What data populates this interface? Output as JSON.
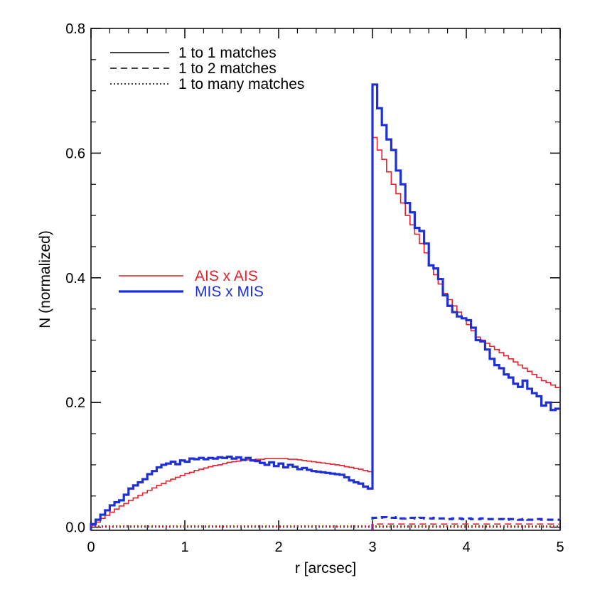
{
  "chart_data": {
    "type": "line",
    "title": "",
    "xlabel": "r [arcsec]",
    "ylabel": "N (normalized)",
    "xlim": [
      0,
      5
    ],
    "ylim": [
      -0.005,
      0.8
    ],
    "xticks": [
      0,
      1,
      2,
      3,
      4,
      5
    ],
    "xtick_labels": [
      "0",
      "1",
      "2",
      "3",
      "4",
      "5"
    ],
    "yticks": [
      0.0,
      0.2,
      0.4,
      0.6,
      0.8
    ],
    "ytick_labels": [
      "0.0",
      "0.2",
      "0.4",
      "0.6",
      "0.8"
    ],
    "step": true,
    "grid": false,
    "legend_linestyle": {
      "entries": [
        {
          "label": "1 to 1 matches",
          "dash": "solid"
        },
        {
          "label": "1 to 2 matches",
          "dash": "dashed"
        },
        {
          "label": "1 to many matches",
          "dash": "dotted"
        }
      ],
      "placement": "top-left"
    },
    "legend_series": {
      "entries": [
        {
          "label": "AIS x AIS",
          "color": "#e8202a",
          "width": "thin"
        },
        {
          "label": "MIS x MIS",
          "color": "#1e2fd6",
          "width": "thick"
        }
      ],
      "placement": "middle-left"
    },
    "series": [
      {
        "name": "AIS x AIS",
        "match": "1 to 1",
        "color": "#e8202a",
        "x": [
          0,
          0.05,
          0.1,
          0.15,
          0.2,
          0.25,
          0.3,
          0.35,
          0.4,
          0.45,
          0.5,
          0.55,
          0.6,
          0.65,
          0.7,
          0.75,
          0.8,
          0.85,
          0.9,
          0.95,
          1.0,
          1.05,
          1.1,
          1.15,
          1.2,
          1.25,
          1.3,
          1.35,
          1.4,
          1.45,
          1.5,
          1.55,
          1.6,
          1.65,
          1.7,
          1.75,
          1.8,
          1.85,
          1.9,
          1.95,
          2.0,
          2.05,
          2.1,
          2.15,
          2.2,
          2.25,
          2.3,
          2.35,
          2.4,
          2.45,
          2.5,
          2.55,
          2.6,
          2.65,
          2.7,
          2.75,
          2.8,
          2.85,
          2.9,
          2.95,
          3.0,
          3.05,
          3.1,
          3.15,
          3.2,
          3.25,
          3.3,
          3.35,
          3.4,
          3.45,
          3.5,
          3.55,
          3.6,
          3.65,
          3.7,
          3.75,
          3.8,
          3.85,
          3.9,
          3.95,
          4.0,
          4.05,
          4.1,
          4.15,
          4.2,
          4.25,
          4.3,
          4.35,
          4.4,
          4.45,
          4.5,
          4.55,
          4.6,
          4.65,
          4.7,
          4.75,
          4.8,
          4.85,
          4.9,
          4.95
        ],
        "y": [
          0.003,
          0.008,
          0.014,
          0.019,
          0.024,
          0.029,
          0.034,
          0.038,
          0.043,
          0.047,
          0.051,
          0.055,
          0.059,
          0.063,
          0.067,
          0.07,
          0.074,
          0.077,
          0.08,
          0.083,
          0.086,
          0.088,
          0.091,
          0.093,
          0.095,
          0.097,
          0.099,
          0.1,
          0.102,
          0.104,
          0.105,
          0.106,
          0.107,
          0.108,
          0.108,
          0.109,
          0.109,
          0.11,
          0.11,
          0.11,
          0.11,
          0.11,
          0.109,
          0.109,
          0.108,
          0.107,
          0.106,
          0.105,
          0.104,
          0.103,
          0.102,
          0.101,
          0.1,
          0.099,
          0.097,
          0.096,
          0.094,
          0.093,
          0.091,
          0.089,
          0.625,
          0.605,
          0.59,
          0.57,
          0.55,
          0.535,
          0.52,
          0.5,
          0.485,
          0.47,
          0.455,
          0.44,
          0.42,
          0.405,
          0.39,
          0.375,
          0.365,
          0.355,
          0.345,
          0.335,
          0.325,
          0.315,
          0.305,
          0.3,
          0.295,
          0.29,
          0.285,
          0.28,
          0.275,
          0.27,
          0.265,
          0.26,
          0.255,
          0.25,
          0.245,
          0.24,
          0.235,
          0.232,
          0.228,
          0.224
        ]
      },
      {
        "name": "MIS x MIS",
        "match": "1 to 1",
        "color": "#1e2fd6",
        "x": [
          0,
          0.05,
          0.1,
          0.15,
          0.2,
          0.25,
          0.3,
          0.35,
          0.4,
          0.45,
          0.5,
          0.55,
          0.6,
          0.65,
          0.7,
          0.75,
          0.8,
          0.85,
          0.9,
          0.95,
          1.0,
          1.05,
          1.1,
          1.15,
          1.2,
          1.25,
          1.3,
          1.35,
          1.4,
          1.45,
          1.5,
          1.55,
          1.6,
          1.65,
          1.7,
          1.75,
          1.8,
          1.85,
          1.9,
          1.95,
          2.0,
          2.05,
          2.1,
          2.15,
          2.2,
          2.25,
          2.3,
          2.35,
          2.4,
          2.45,
          2.5,
          2.55,
          2.6,
          2.65,
          2.7,
          2.75,
          2.8,
          2.85,
          2.9,
          2.95,
          3.0,
          3.05,
          3.1,
          3.15,
          3.2,
          3.25,
          3.3,
          3.35,
          3.4,
          3.45,
          3.5,
          3.55,
          3.6,
          3.65,
          3.7,
          3.75,
          3.8,
          3.85,
          3.9,
          3.95,
          4.0,
          4.05,
          4.1,
          4.15,
          4.2,
          4.25,
          4.3,
          4.35,
          4.4,
          4.45,
          4.5,
          4.55,
          4.6,
          4.65,
          4.7,
          4.75,
          4.8,
          4.85,
          4.9,
          4.95
        ],
        "y": [
          0.005,
          0.012,
          0.02,
          0.027,
          0.035,
          0.04,
          0.043,
          0.052,
          0.062,
          0.067,
          0.072,
          0.077,
          0.085,
          0.09,
          0.096,
          0.1,
          0.102,
          0.105,
          0.101,
          0.107,
          0.105,
          0.11,
          0.109,
          0.111,
          0.109,
          0.111,
          0.11,
          0.112,
          0.111,
          0.113,
          0.11,
          0.112,
          0.108,
          0.111,
          0.107,
          0.106,
          0.103,
          0.1,
          0.104,
          0.098,
          0.102,
          0.096,
          0.1,
          0.097,
          0.093,
          0.095,
          0.092,
          0.09,
          0.089,
          0.088,
          0.087,
          0.086,
          0.085,
          0.084,
          0.08,
          0.075,
          0.072,
          0.07,
          0.065,
          0.062,
          0.71,
          0.672,
          0.645,
          0.622,
          0.605,
          0.572,
          0.55,
          0.52,
          0.505,
          0.48,
          0.475,
          0.455,
          0.42,
          0.415,
          0.398,
          0.372,
          0.355,
          0.345,
          0.338,
          0.335,
          0.332,
          0.32,
          0.3,
          0.298,
          0.285,
          0.27,
          0.26,
          0.255,
          0.245,
          0.24,
          0.23,
          0.225,
          0.235,
          0.222,
          0.215,
          0.21,
          0.195,
          0.2,
          0.188,
          0.19
        ]
      },
      {
        "name": "MIS x MIS",
        "match": "1 to 2",
        "color": "#1e2fd6",
        "x": [
          3.0,
          3.05,
          3.1,
          3.15,
          3.2,
          3.25,
          3.3,
          3.35,
          3.4,
          3.45,
          3.5,
          3.55,
          3.6,
          3.65,
          3.7,
          3.75,
          3.8,
          3.85,
          3.9,
          3.95,
          4.0,
          4.05,
          4.1,
          4.15,
          4.2,
          4.25,
          4.3,
          4.35,
          4.4,
          4.45,
          4.5,
          4.55,
          4.6,
          4.65,
          4.7,
          4.75,
          4.8,
          4.85,
          4.9,
          4.95
        ],
        "y": [
          0.015,
          0.015,
          0.016,
          0.015,
          0.015,
          0.016,
          0.014,
          0.015,
          0.015,
          0.014,
          0.015,
          0.014,
          0.014,
          0.015,
          0.014,
          0.014,
          0.013,
          0.014,
          0.014,
          0.013,
          0.014,
          0.013,
          0.013,
          0.014,
          0.013,
          0.013,
          0.013,
          0.013,
          0.012,
          0.013,
          0.013,
          0.012,
          0.013,
          0.012,
          0.012,
          0.013,
          0.012,
          0.012,
          0.012,
          0.012
        ]
      },
      {
        "name": "AIS x AIS",
        "match": "1 to 2",
        "color": "#e8202a",
        "x": [
          3.0,
          3.05,
          3.1,
          3.15,
          3.2,
          3.25,
          3.3,
          3.35,
          3.4,
          3.45,
          3.5,
          3.55,
          3.6,
          3.65,
          3.7,
          3.75,
          3.8,
          3.85,
          3.9,
          3.95,
          4.0,
          4.05,
          4.1,
          4.15,
          4.2,
          4.25,
          4.3,
          4.35,
          4.4,
          4.45,
          4.5,
          4.55,
          4.6,
          4.65,
          4.7,
          4.75,
          4.8,
          4.85,
          4.9,
          4.95
        ],
        "y": [
          0.005,
          0.005,
          0.005,
          0.005,
          0.005,
          0.005,
          0.005,
          0.005,
          0.005,
          0.005,
          0.005,
          0.005,
          0.005,
          0.005,
          0.005,
          0.005,
          0.005,
          0.005,
          0.005,
          0.005,
          0.005,
          0.005,
          0.005,
          0.005,
          0.005,
          0.005,
          0.005,
          0.005,
          0.005,
          0.005,
          0.005,
          0.005,
          0.005,
          0.005,
          0.005,
          0.005,
          0.005,
          0.005,
          0.005,
          0.005
        ]
      },
      {
        "name": "MIS x MIS",
        "match": "1 to many",
        "color": "#1e2fd6",
        "x": [
          0,
          5
        ],
        "y": [
          0.001,
          0.001
        ]
      },
      {
        "name": "AIS x AIS",
        "match": "1 to many",
        "color": "#e8202a",
        "x": [
          0,
          5
        ],
        "y": [
          0.0015,
          0.0015
        ]
      }
    ]
  }
}
